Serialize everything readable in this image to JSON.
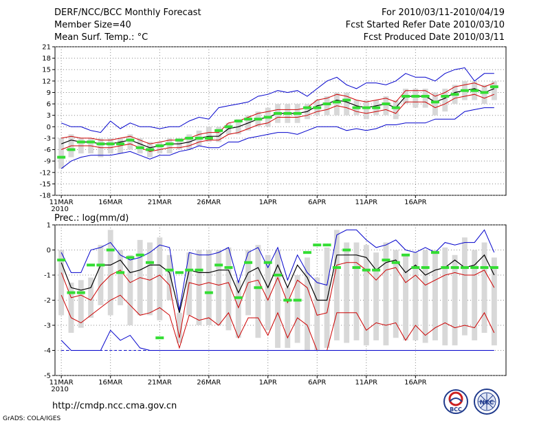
{
  "header": {
    "title": "DERF/NCC/BCC Monthly Forecast",
    "member_size": "Member Size=40",
    "variable": "Mean Surf. Temp.: °C",
    "period": "For 2010/03/11-2010/04/19",
    "start_date": "Fcst Started Refer Date 2010/03/10",
    "produced": "Fcst Produced Date 2010/03/11"
  },
  "footer": {
    "url": "http://cmdp.ncc.cma.gov.cn",
    "grads": "GrADS: COLA/IGES"
  },
  "logos": {
    "bcc": "BCC",
    "ncc": "NCC"
  },
  "colors": {
    "mean": "#000000",
    "spread": "#cc0000",
    "extreme": "#0000cc",
    "obs": "#33dd33",
    "box": "#d8d8d8",
    "zero": "#0000cc"
  },
  "chart_data": [
    {
      "type": "line",
      "title": "Mean Surf. Temp.: °C",
      "x_tick_labels": [
        "11MAR",
        "16MAR",
        "21MAR",
        "26MAR",
        "1APR",
        "6APR",
        "11APR",
        "16APR"
      ],
      "x_tick_days": [
        0,
        5,
        10,
        15,
        21,
        26,
        31,
        36
      ],
      "year_label": "2010",
      "ylim": [
        -18,
        21
      ],
      "y_ticks": [
        -18,
        -15,
        -12,
        -9,
        -6,
        -3,
        0,
        3,
        6,
        9,
        12,
        15,
        18,
        21
      ],
      "y_tick_labels": [
        "-18",
        "-15",
        "-12",
        "-9",
        "-6",
        "-3",
        "0",
        "3",
        "6",
        "9",
        "12",
        "15",
        "18",
        "21"
      ],
      "days": 40,
      "series": [
        {
          "name": "ensemble mean",
          "values": [
            -4.5,
            -3.5,
            -4,
            -4,
            -4.5,
            -4.5,
            -4,
            -3.5,
            -4.5,
            -5.5,
            -5,
            -4.5,
            -4.5,
            -4,
            -3,
            -2.5,
            -2.5,
            -0.5,
            0,
            1,
            2,
            2.5,
            3.5,
            3.5,
            3.5,
            4,
            5.5,
            6,
            7,
            6.5,
            5.5,
            5,
            5.5,
            6,
            5,
            8,
            8,
            8,
            6.5,
            7.5,
            9,
            9.5,
            10,
            9,
            10
          ]
        },
        {
          "name": "spread upper",
          "values": [
            -3,
            -2.5,
            -3,
            -3,
            -3.5,
            -3.5,
            -3,
            -2.5,
            -3.5,
            -4.5,
            -4,
            -3.5,
            -3.5,
            -3,
            -2,
            -1.5,
            -1.5,
            1,
            1.5,
            2.5,
            3.5,
            4,
            4.5,
            4.5,
            4.5,
            5,
            7,
            7.5,
            8.5,
            8,
            7,
            6.5,
            7,
            7.5,
            6.5,
            9.5,
            9.5,
            9.5,
            8,
            9,
            10.5,
            11,
            11.5,
            10.5,
            11.5
          ]
        },
        {
          "name": "spread lower",
          "values": [
            -6,
            -5,
            -5,
            -5,
            -5.5,
            -5.5,
            -5,
            -4.5,
            -5.5,
            -6.5,
            -6,
            -5.5,
            -5.5,
            -5,
            -4,
            -3.5,
            -3.5,
            -2,
            -1.5,
            -0.5,
            0.5,
            1,
            2.5,
            2.5,
            2.5,
            3,
            4,
            4.5,
            5.5,
            5,
            4,
            3.5,
            4,
            4.5,
            3.5,
            6.5,
            6.5,
            6.5,
            5,
            6,
            7.5,
            8,
            8.5,
            7.5,
            8.5
          ]
        },
        {
          "name": "max member",
          "values": [
            1,
            0,
            0,
            -1,
            -1.5,
            1.5,
            -0.5,
            1,
            0,
            0,
            -0.5,
            0,
            0,
            1.5,
            2.5,
            2,
            5,
            5.5,
            6,
            6.5,
            8,
            8.5,
            9.5,
            9,
            9.5,
            8,
            10,
            12,
            13,
            11,
            10,
            11.5,
            11.5,
            11,
            12,
            14,
            13,
            13,
            12,
            14,
            15,
            15.5,
            12,
            14,
            14
          ]
        },
        {
          "name": "min member",
          "values": [
            -11,
            -9,
            -8,
            -7.5,
            -7.5,
            -7.5,
            -7,
            -6.5,
            -7.5,
            -8.5,
            -7.5,
            -7.5,
            -6.5,
            -6,
            -5,
            -5.5,
            -5.5,
            -4,
            -4,
            -3,
            -2.5,
            -2,
            -1.5,
            -1.5,
            -2,
            -1,
            0,
            0,
            0,
            -1,
            -0.5,
            -1,
            -0.5,
            0.5,
            0.5,
            1,
            1,
            1,
            2,
            2,
            2,
            4,
            4.5,
            5,
            5
          ]
        },
        {
          "name": "observed/hindcast bars",
          "values": [
            -8,
            -6,
            -4,
            -4,
            -4.5,
            -4.5,
            -4.5,
            -3.5,
            -5.5,
            -6,
            -5,
            -4.5,
            -3.5,
            -3,
            -3,
            -3,
            -1,
            0,
            1.5,
            2,
            2,
            2.5,
            3.5,
            3.5,
            3.5,
            5,
            5,
            6,
            6.5,
            7,
            5,
            5,
            5,
            6,
            5,
            8,
            8,
            8,
            6.5,
            8,
            8.5,
            9.5,
            9.5,
            9,
            10.5
          ]
        }
      ],
      "box_ranges": [
        [
          -11,
          -3
        ],
        [
          -8,
          -2
        ],
        [
          -7,
          -3
        ],
        [
          -7,
          -3
        ],
        [
          -8,
          -3
        ],
        [
          -7,
          -3
        ],
        [
          -7,
          -3
        ],
        [
          -6,
          -2
        ],
        [
          -7,
          -3
        ],
        [
          -8,
          -4
        ],
        [
          -7,
          -4
        ],
        [
          -7,
          -3
        ],
        [
          -6,
          -3
        ],
        [
          -6,
          -2
        ],
        [
          -5,
          -1
        ],
        [
          -4,
          0
        ],
        [
          -4,
          0
        ],
        [
          -2,
          1
        ],
        [
          -2,
          2
        ],
        [
          -1,
          3
        ],
        [
          0,
          4
        ],
        [
          0,
          5
        ],
        [
          1,
          6
        ],
        [
          1,
          6
        ],
        [
          1,
          6
        ],
        [
          2,
          6
        ],
        [
          3,
          7
        ],
        [
          3,
          8
        ],
        [
          3,
          9
        ],
        [
          3,
          9
        ],
        [
          3,
          7
        ],
        [
          2,
          7
        ],
        [
          3,
          7
        ],
        [
          3,
          8
        ],
        [
          2,
          7
        ],
        [
          6,
          10
        ],
        [
          5,
          10
        ],
        [
          5,
          10
        ],
        [
          3,
          9
        ],
        [
          4,
          10
        ],
        [
          6,
          11
        ],
        [
          7,
          12
        ],
        [
          7,
          12
        ],
        [
          6,
          11
        ],
        [
          7,
          12
        ]
      ]
    },
    {
      "type": "line",
      "title": "Prec.: log(mm/d)",
      "x_tick_labels": [
        "11MAR",
        "16MAR",
        "21MAR",
        "26MAR",
        "1APR",
        "6APR",
        "11APR",
        "16APR"
      ],
      "x_tick_days": [
        0,
        5,
        10,
        15,
        21,
        26,
        31,
        36
      ],
      "year_label": "2010",
      "ylim": [
        -5,
        1
      ],
      "y_ticks": [
        -5,
        -4,
        -3,
        -2,
        -1,
        0,
        1
      ],
      "y_tick_labels": [
        "-5",
        "-4",
        "-3",
        "-2",
        "-1",
        "0",
        "1"
      ],
      "days": 40,
      "series": [
        {
          "name": "ensemble mean",
          "values": [
            -0.5,
            -1.5,
            -1.6,
            -1.5,
            -0.6,
            -0.6,
            -0.4,
            -0.9,
            -0.8,
            -0.6,
            -0.6,
            -0.9,
            -2.5,
            -0.8,
            -0.9,
            -0.9,
            -0.8,
            -0.8,
            -1.7,
            -0.9,
            -0.7,
            -1.5,
            -0.6,
            -1.5,
            -0.6,
            -1.1,
            -2.0,
            -2.0,
            -0.2,
            -0.2,
            -0.2,
            -0.3,
            -0.8,
            -0.5,
            -0.4,
            -0.9,
            -0.6,
            -1.0,
            -0.8,
            -0.7,
            -0.4,
            -0.7,
            -0.6,
            -0.2,
            -1.0
          ]
        },
        {
          "name": "spread upper",
          "values": [
            -0.9,
            -1.9,
            -1.8,
            -2.0,
            -1.4,
            -1.0,
            -0.8,
            -1.3,
            -1.1,
            -1.2,
            -1.0,
            -1.4,
            -3.5,
            -1.3,
            -1.4,
            -1.3,
            -1.4,
            -1.3,
            -2.3,
            -1.3,
            -1.2,
            -2.0,
            -1.1,
            -2.1,
            -1.2,
            -1.5,
            -2.6,
            -2.5,
            -0.6,
            -0.5,
            -0.5,
            -0.8,
            -1.2,
            -0.8,
            -0.7,
            -1.3,
            -1.0,
            -1.4,
            -1.2,
            -1.0,
            -0.9,
            -1.0,
            -1.0,
            -0.8,
            -1.5
          ]
        },
        {
          "name": "spread lower",
          "values": [
            -1.8,
            -2.7,
            -2.9,
            -2.6,
            -2.3,
            -2.0,
            -1.8,
            -2.2,
            -2.6,
            -2.5,
            -2.3,
            -2.6,
            -3.9,
            -2.6,
            -2.8,
            -2.7,
            -3.0,
            -2.5,
            -3.5,
            -2.7,
            -2.7,
            -3.4,
            -2.5,
            -3.5,
            -2.7,
            -3.0,
            -4.0,
            -4.0,
            -2.5,
            -2.5,
            -2.5,
            -3.2,
            -2.9,
            -3.0,
            -2.9,
            -3.6,
            -3.0,
            -3.4,
            -3.1,
            -2.9,
            -3.1,
            -3.0,
            -3.1,
            -2.5,
            -3.3
          ]
        },
        {
          "name": "max member",
          "values": [
            -0.1,
            -0.9,
            -0.9,
            0,
            0.1,
            0.3,
            -0.2,
            -0.4,
            -0.3,
            -0.1,
            0.2,
            0.1,
            -2.4,
            -0.1,
            -0.2,
            -0.2,
            -0.1,
            0.1,
            -1.3,
            -0.1,
            0.1,
            -0.7,
            0.1,
            -1.2,
            -0.2,
            -0.9,
            -1.3,
            -1.4,
            0.6,
            0.8,
            0.8,
            0.4,
            0.1,
            0.2,
            0.4,
            0,
            -0.1,
            0.1,
            -0.1,
            0.3,
            0.2,
            0.3,
            0.3,
            0.8,
            -0.1
          ]
        },
        {
          "name": "min member",
          "values": [
            -3.6,
            -4,
            -4,
            -4,
            -4,
            -3.2,
            -3.6,
            -3.4,
            -3.9,
            -4,
            -4,
            -4,
            -4,
            -4,
            -4,
            -4,
            -4,
            -4,
            -4,
            -4,
            -4,
            -4,
            -4,
            -4,
            -4,
            -4,
            -4,
            -4,
            -4,
            -4,
            -4,
            -4,
            -4,
            -4,
            -4,
            -4,
            -4,
            -4,
            -4,
            -4,
            -4,
            -4,
            -4,
            -4,
            -4
          ]
        },
        {
          "name": "observed/hindcast bars",
          "values": [
            -0.4,
            -1.7,
            -1.7,
            -0.6,
            -0.6,
            0,
            -0.9,
            -0.3,
            -0.2,
            -0.5,
            -3.5,
            -0.8,
            -0.9,
            -0.8,
            -0.8,
            -1.7,
            -0.6,
            -0.7,
            -1.9,
            -0.5,
            -1.5,
            -0.5,
            -1.0,
            -2.0,
            -2.0,
            -0.1,
            0.2,
            0.2,
            -0.7,
            0,
            -0.7,
            -0.8,
            -0.8,
            -0.4,
            -0.5,
            -0.2,
            -0.7,
            -0.7,
            -0.1,
            -0.7,
            -0.7,
            -0.7,
            -0.7,
            -0.7,
            -0.7
          ]
        }
      ],
      "box_ranges": [
        [
          -2.6,
          0
        ],
        [
          -3.3,
          -1.3
        ],
        [
          -3.1,
          -1.2
        ],
        [
          -2.7,
          -1.1
        ],
        [
          -2.2,
          0.2
        ],
        [
          -2.6,
          0.8
        ],
        [
          -2.2,
          0
        ],
        [
          -3.0,
          -0.2
        ],
        [
          -2.6,
          0.4
        ],
        [
          -2.6,
          0.3
        ],
        [
          -2.8,
          0.5
        ],
        [
          -2.0,
          -0.2
        ],
        [
          -3.7,
          -2.5
        ],
        [
          -2.6,
          -0.1
        ],
        [
          -3.0,
          0
        ],
        [
          -3.0,
          0
        ],
        [
          -3.0,
          0
        ],
        [
          -3.2,
          0.1
        ],
        [
          -3.5,
          -1.2
        ],
        [
          -2.6,
          0
        ],
        [
          -3.5,
          0.2
        ],
        [
          -3.2,
          -0.2
        ],
        [
          -3.9,
          0
        ],
        [
          -3.9,
          -1.5
        ],
        [
          -3.7,
          -1.0
        ],
        [
          -4.0,
          -0.3
        ],
        [
          -4.0,
          -1.1
        ],
        [
          -3.9,
          0.1
        ],
        [
          -3.6,
          0.8
        ],
        [
          -3.7,
          0.3
        ],
        [
          -3.6,
          0.3
        ],
        [
          -3.8,
          0.2
        ],
        [
          -3.6,
          -0.1
        ],
        [
          -3.8,
          0.3
        ],
        [
          -3.5,
          0
        ],
        [
          -3.6,
          -0.2
        ],
        [
          -3.6,
          -0.1
        ],
        [
          -3.7,
          0
        ],
        [
          -3.6,
          0
        ],
        [
          -3.8,
          0.1
        ],
        [
          -3.8,
          -0.2
        ],
        [
          -3.4,
          0.5
        ],
        [
          -3.6,
          0
        ],
        [
          -3.3,
          0.3
        ],
        [
          -3.8,
          -0.3
        ]
      ]
    }
  ]
}
